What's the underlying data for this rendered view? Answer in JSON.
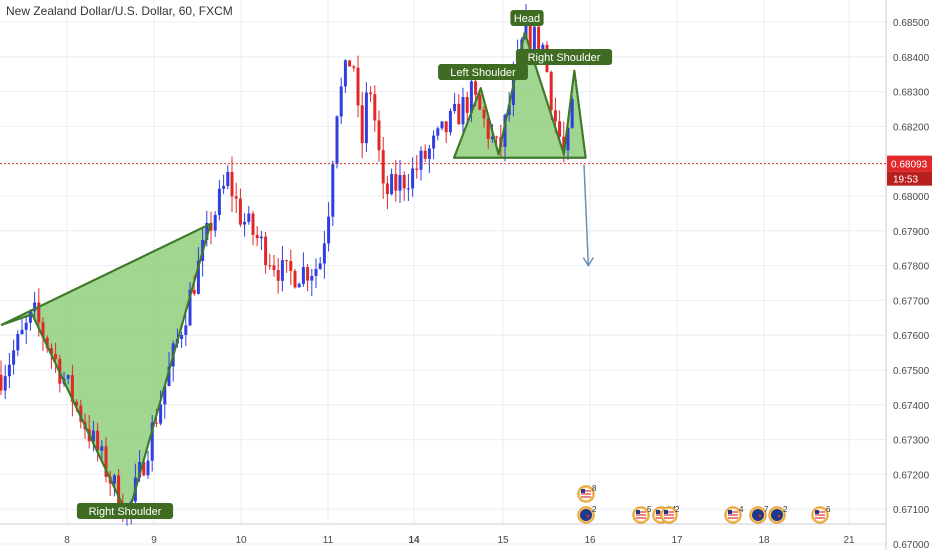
{
  "title": "New Zealand Dollar/U.S. Dollar, 60, FXCM",
  "price_tag": {
    "price": "0.68093",
    "countdown": "19:53",
    "value": 0.68093
  },
  "colors": {
    "up": "#2f3fe0",
    "down": "#e02828",
    "pattern_fill": "#8fcf7c",
    "pattern_line": "#3f7a2a",
    "label_bg": "#3f6b23",
    "current_price": "#e02828",
    "arrow": "#6b8fb5",
    "grid": "#e9edf2"
  },
  "annotations": {
    "head": "Head",
    "left_shoulder": "Left Shoulder",
    "right_shoulder_top": "Right Shoulder",
    "right_shoulder_bottom": "Right Shoulder"
  },
  "event_badges": [
    "8",
    "2",
    "5",
    "14",
    "2",
    "4",
    "7",
    "2",
    "6"
  ],
  "chart_data": {
    "type": "candlestick",
    "title": "New Zealand Dollar/U.S. Dollar, 60, FXCM",
    "y_axis_ticks": [
      0.685,
      0.684,
      0.683,
      0.682,
      0.681,
      0.68,
      0.679,
      0.678,
      0.677,
      0.676,
      0.675,
      0.674,
      0.673,
      0.672,
      0.671,
      0.67
    ],
    "y_tick_labels": [
      "0.68500",
      "0.68400",
      "0.68300",
      "0.68200",
      "0.68100",
      "0.68000",
      "0.67900",
      "0.67800",
      "0.67700",
      "0.67600",
      "0.67500",
      "0.67400",
      "0.67300",
      "0.67200",
      "0.67100",
      "0.67000"
    ],
    "x_axis_ticks": [
      8,
      9,
      10,
      11,
      14,
      15,
      16,
      17,
      18,
      21
    ],
    "x_tick_labels": [
      "8",
      "9",
      "10",
      "11",
      "14",
      "15",
      "16",
      "17",
      "18",
      "21"
    ],
    "ylim": [
      0.6699,
      0.6862
    ],
    "grid": true,
    "current_price": 0.68093,
    "key_points": [
      {
        "day": 7.25,
        "price": 0.6749
      },
      {
        "day": 7.62,
        "price": 0.6766
      },
      {
        "day": 8.7,
        "price": 0.6708
      },
      {
        "day": 9.65,
        "price": 0.6792
      },
      {
        "day": 9.85,
        "price": 0.6805
      },
      {
        "day": 10.0,
        "price": 0.6794
      },
      {
        "day": 10.5,
        "price": 0.6777
      },
      {
        "day": 10.9,
        "price": 0.678
      },
      {
        "day": 11.2,
        "price": 0.6825
      },
      {
        "day": 11.6,
        "price": 0.6842
      },
      {
        "day": 11.8,
        "price": 0.6812
      },
      {
        "day": 12.0,
        "price": 0.6834
      },
      {
        "day": 12.4,
        "price": 0.6815
      },
      {
        "day": 12.6,
        "price": 0.68
      },
      {
        "day": 14.0,
        "price": 0.6807
      },
      {
        "day": 14.65,
        "price": 0.6829
      },
      {
        "day": 14.95,
        "price": 0.6812
      },
      {
        "day": 15.25,
        "price": 0.6847
      },
      {
        "day": 15.45,
        "price": 0.6844
      },
      {
        "day": 15.6,
        "price": 0.6822
      },
      {
        "day": 15.72,
        "price": 0.681
      },
      {
        "day": 15.85,
        "price": 0.6836
      },
      {
        "day": 15.96,
        "price": 0.6809
      }
    ],
    "patterns": [
      {
        "name": "Right Shoulder",
        "points": [
          {
            "day": 7.25,
            "price": 0.6763
          },
          {
            "day": 7.6,
            "price": 0.6766
          },
          {
            "day": 8.7,
            "price": 0.6708
          },
          {
            "day": 9.65,
            "price": 0.6792
          }
        ]
      },
      {
        "name": "Head and Shoulders",
        "points": [
          {
            "day": 14.45,
            "price": 0.6811
          },
          {
            "day": 14.75,
            "price": 0.6831
          },
          {
            "day": 14.95,
            "price": 0.6812
          },
          {
            "day": 15.25,
            "price": 0.6847
          },
          {
            "day": 15.7,
            "price": 0.6812
          },
          {
            "day": 15.82,
            "price": 0.6836
          },
          {
            "day": 15.95,
            "price": 0.6811
          }
        ]
      }
    ],
    "projection": {
      "from": {
        "day": 16.0,
        "price": 0.6809
      },
      "to": {
        "day": 16.05,
        "price": 0.678
      }
    }
  }
}
